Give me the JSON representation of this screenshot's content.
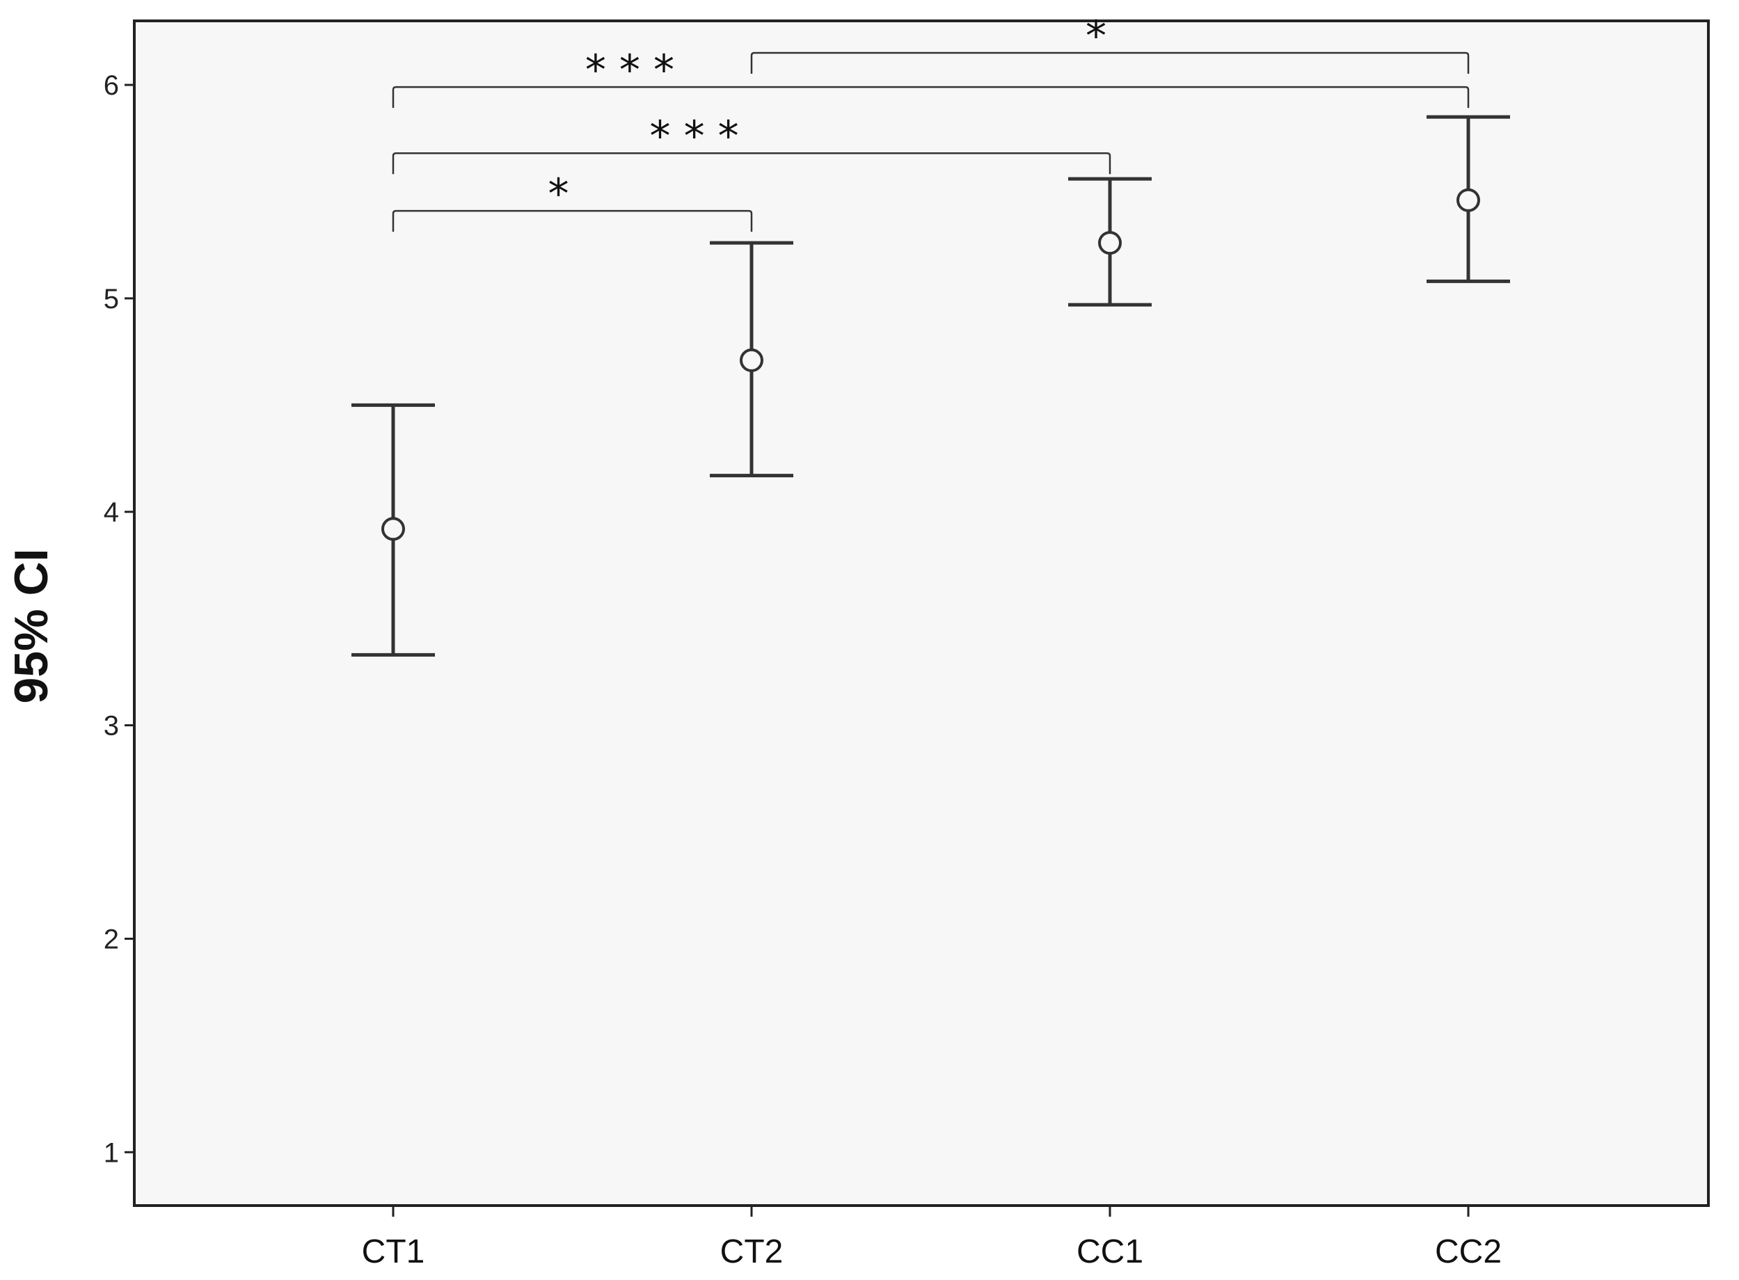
{
  "chart_data": {
    "type": "errorbar",
    "title": "",
    "xlabel": "",
    "ylabel": "95% CI",
    "categories": [
      "CT1",
      "CT2",
      "CC1",
      "CC2"
    ],
    "yticks": [
      "1",
      "2",
      "3",
      "4",
      "5",
      "6"
    ],
    "ylim": [
      0.75,
      6.3
    ],
    "grid": false,
    "series": [
      {
        "means": [
          3.92,
          4.71,
          5.26,
          5.46
        ],
        "lower": [
          3.33,
          4.17,
          4.97,
          5.08
        ],
        "upper": [
          4.5,
          5.26,
          5.56,
          5.85
        ]
      }
    ],
    "significance": [
      {
        "from": "CT2",
        "to": "CC2",
        "label": "*",
        "level": 6.15
      },
      {
        "from": "CT1",
        "to": "CC2",
        "label": "***",
        "level": 5.99
      },
      {
        "from": "CT1",
        "to": "CC1",
        "label": "***",
        "level": 5.68
      },
      {
        "from": "CT1",
        "to": "CT2",
        "label": "*",
        "level": 5.41
      }
    ],
    "colors": {
      "plot_background": "#f7f7f7",
      "errorbar": "#333333",
      "frame": "#222222"
    }
  }
}
